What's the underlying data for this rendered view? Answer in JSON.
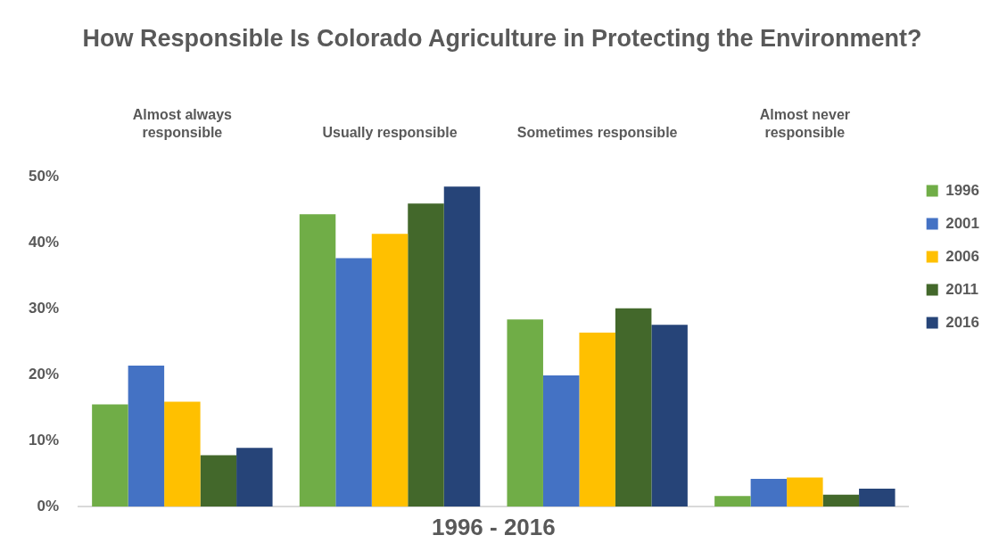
{
  "chart_data": {
    "type": "bar",
    "title": "How Responsible Is Colorado Agriculture in Protecting the Environment?",
    "xlabel": "1996 - 2016",
    "categories": [
      "Almost always responsible",
      "Usually responsible",
      "Sometimes responsible",
      "Almost never responsible"
    ],
    "series": [
      {
        "name": "1996",
        "color": "#70ad47",
        "values": [
          15.5,
          44.4,
          28.4,
          1.6
        ]
      },
      {
        "name": "2001",
        "color": "#4472c4",
        "values": [
          21.4,
          37.7,
          19.9,
          4.2
        ]
      },
      {
        "name": "2006",
        "color": "#ffc000",
        "values": [
          15.9,
          41.4,
          26.4,
          4.4
        ]
      },
      {
        "name": "2011",
        "color": "#43682b",
        "values": [
          7.8,
          46.0,
          30.1,
          1.8
        ]
      },
      {
        "name": "2016",
        "color": "#264478",
        "values": [
          8.9,
          48.6,
          27.6,
          2.7
        ]
      }
    ],
    "ylim": [
      0,
      50
    ],
    "yticks": [
      {
        "value": 0,
        "label": "0%"
      },
      {
        "value": 10,
        "label": "10%"
      },
      {
        "value": 20,
        "label": "20%"
      },
      {
        "value": 30,
        "label": "30%"
      },
      {
        "value": 40,
        "label": "40%"
      },
      {
        "value": 50,
        "label": "50%"
      }
    ],
    "grid": false,
    "legend": "right"
  }
}
